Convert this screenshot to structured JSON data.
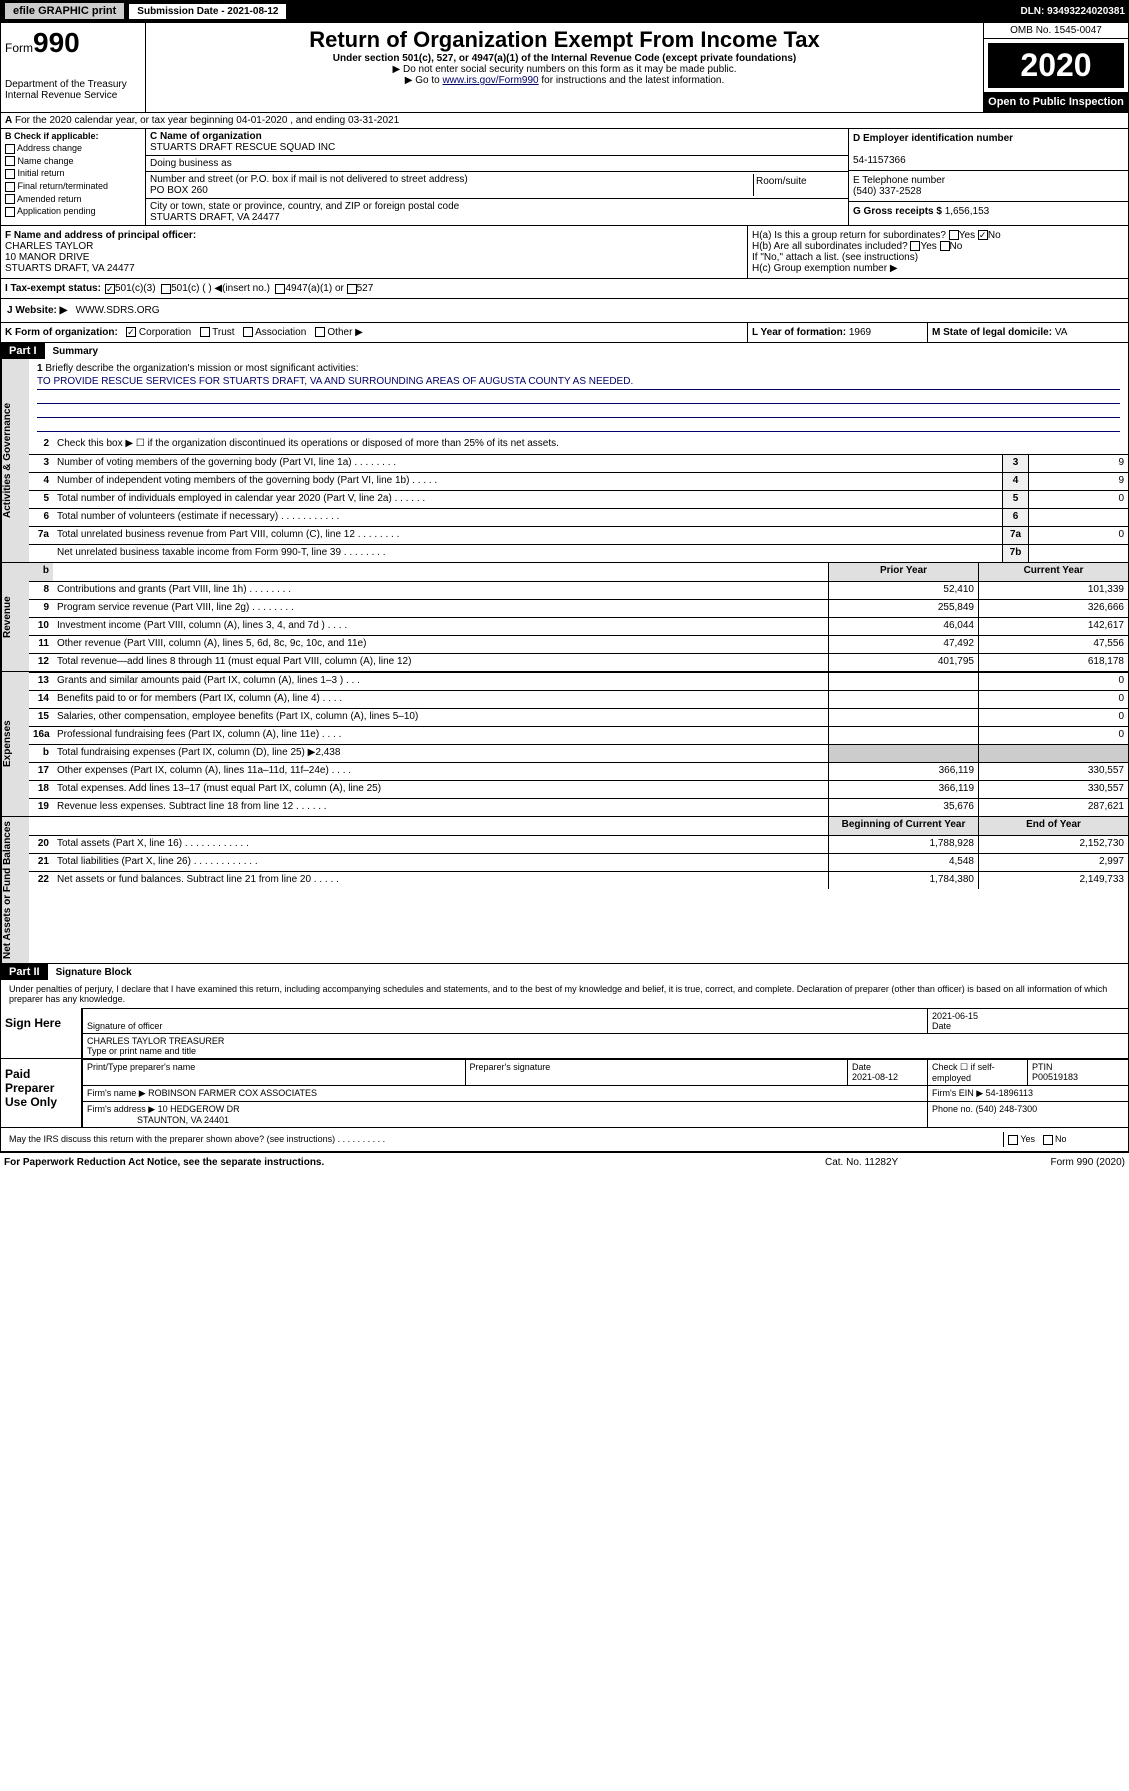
{
  "top": {
    "efile": "efile GRAPHIC print",
    "sub_label": "Submission Date - 2021-08-12",
    "dln": "DLN: 93493224020381"
  },
  "header": {
    "form_label": "Form",
    "form_num": "990",
    "dept": "Department of the Treasury\nInternal Revenue Service",
    "title": "Return of Organization Exempt From Income Tax",
    "subtitle": "Under section 501(c), 527, or 4947(a)(1) of the Internal Revenue Code (except private foundations)",
    "note1": "▶ Do not enter social security numbers on this form as it may be made public.",
    "note2_pre": "▶ Go to ",
    "note2_link": "www.irs.gov/Form990",
    "note2_post": " for instructions and the latest information.",
    "omb": "OMB No. 1545-0047",
    "year": "2020",
    "open": "Open to Public Inspection"
  },
  "row_a": "For the 2020 calendar year, or tax year beginning 04-01-2020    , and ending 03-31-2021",
  "col_b": {
    "hdr": "B Check if applicable:",
    "items": [
      "Address change",
      "Name change",
      "Initial return",
      "Final return/terminated",
      "Amended return",
      "Application pending"
    ]
  },
  "col_c": {
    "name_lbl": "C Name of organization",
    "name": "STUARTS DRAFT RESCUE SQUAD INC",
    "dba_lbl": "Doing business as",
    "addr_lbl": "Number and street (or P.O. box if mail is not delivered to street address)",
    "room_lbl": "Room/suite",
    "addr": "PO BOX 260",
    "city_lbl": "City or town, state or province, country, and ZIP or foreign postal code",
    "city": "STUARTS DRAFT, VA  24477"
  },
  "col_d": {
    "ein_lbl": "D Employer identification number",
    "ein": "54-1157366",
    "tel_lbl": "E Telephone number",
    "tel": "(540) 337-2528",
    "gross_lbl": "G Gross receipts $",
    "gross": "1,656,153"
  },
  "row_f": {
    "lbl": "F  Name and address of principal officer:",
    "name": "CHARLES TAYLOR",
    "addr1": "10 MANOR DRIVE",
    "addr2": "STUARTS DRAFT, VA  24477"
  },
  "row_h": {
    "ha": "H(a)  Is this a group return for subordinates?",
    "hb": "H(b)  Are all subordinates included?",
    "hb_note": "If \"No,\" attach a list. (see instructions)",
    "hc": "H(c)  Group exemption number ▶"
  },
  "row_i": {
    "lbl": "I  Tax-exempt status:",
    "opts": [
      "501(c)(3)",
      "501(c) (   ) ◀(insert no.)",
      "4947(a)(1) or",
      "527"
    ]
  },
  "row_j": {
    "lbl": "J  Website: ▶",
    "val": "WWW.SDRS.ORG"
  },
  "row_k": {
    "k": "K Form of organization:",
    "kopts": [
      "Corporation",
      "Trust",
      "Association",
      "Other ▶"
    ],
    "l_lbl": "L Year of formation:",
    "l_val": "1969",
    "m_lbl": "M State of legal domicile:",
    "m_val": "VA"
  },
  "part1": {
    "hdr": "Part I",
    "title": "Summary",
    "line1": "Briefly describe the organization's mission or most significant activities:",
    "mission": "TO PROVIDE RESCUE SERVICES FOR STUARTS DRAFT, VA AND SURROUNDING AREAS OF AUGUSTA COUNTY AS NEEDED.",
    "line2": "Check this box ▶ ☐  if the organization discontinued its operations or disposed of more than 25% of its net assets.",
    "lines_gov": [
      {
        "n": "3",
        "d": "Number of voting members of the governing body (Part VI, line 1a)   .    .    .    .    .    .    .    .",
        "box": "3",
        "v": "9"
      },
      {
        "n": "4",
        "d": "Number of independent voting members of the governing body (Part VI, line 1b)   .    .    .    .    .",
        "box": "4",
        "v": "9"
      },
      {
        "n": "5",
        "d": "Total number of individuals employed in calendar year 2020 (Part V, line 2a)   .    .    .    .    .    .",
        "box": "5",
        "v": "0"
      },
      {
        "n": "6",
        "d": "Total number of volunteers (estimate if necessary)   .    .    .    .    .    .    .    .    .    .    .",
        "box": "6",
        "v": ""
      },
      {
        "n": "7a",
        "d": "Total unrelated business revenue from Part VIII, column (C), line 12   .    .    .    .    .    .    .    .",
        "box": "7a",
        "v": "0"
      },
      {
        "n": "",
        "d": "Net unrelated business taxable income from Form 990-T, line 39   .    .    .    .    .    .    .    .",
        "box": "7b",
        "v": ""
      }
    ],
    "py_hdr": "Prior Year",
    "cy_hdr": "Current Year",
    "lines_rev": [
      {
        "n": "8",
        "d": "Contributions and grants (Part VIII, line 1h)   .    .    .    .    .    .    .    .",
        "py": "52,410",
        "cy": "101,339"
      },
      {
        "n": "9",
        "d": "Program service revenue (Part VIII, line 2g)   .    .    .    .    .    .    .    .",
        "py": "255,849",
        "cy": "326,666"
      },
      {
        "n": "10",
        "d": "Investment income (Part VIII, column (A), lines 3, 4, and 7d )   .    .    .    .",
        "py": "46,044",
        "cy": "142,617"
      },
      {
        "n": "11",
        "d": "Other revenue (Part VIII, column (A), lines 5, 6d, 8c, 9c, 10c, and 11e)",
        "py": "47,492",
        "cy": "47,556"
      },
      {
        "n": "12",
        "d": "Total revenue—add lines 8 through 11 (must equal Part VIII, column (A), line 12)",
        "py": "401,795",
        "cy": "618,178"
      }
    ],
    "lines_exp": [
      {
        "n": "13",
        "d": "Grants and similar amounts paid (Part IX, column (A), lines 1–3 )   .    .    .",
        "py": "",
        "cy": "0"
      },
      {
        "n": "14",
        "d": "Benefits paid to or for members (Part IX, column (A), line 4)   .    .    .    .",
        "py": "",
        "cy": "0"
      },
      {
        "n": "15",
        "d": "Salaries, other compensation, employee benefits (Part IX, column (A), lines 5–10)",
        "py": "",
        "cy": "0"
      },
      {
        "n": "16a",
        "d": "Professional fundraising fees (Part IX, column (A), line 11e)   .    .    .    .",
        "py": "",
        "cy": "0"
      },
      {
        "n": "b",
        "d": "Total fundraising expenses (Part IX, column (D), line 25) ▶2,438",
        "py": "__gray__",
        "cy": "__gray__"
      },
      {
        "n": "17",
        "d": "Other expenses (Part IX, column (A), lines 11a–11d, 11f–24e)   .    .    .    .",
        "py": "366,119",
        "cy": "330,557"
      },
      {
        "n": "18",
        "d": "Total expenses. Add lines 13–17 (must equal Part IX, column (A), line 25)",
        "py": "366,119",
        "cy": "330,557"
      },
      {
        "n": "19",
        "d": "Revenue less expenses. Subtract line 18 from line 12   .    .    .    .    .    .",
        "py": "35,676",
        "cy": "287,621"
      }
    ],
    "bcy_hdr": "Beginning of Current Year",
    "eoy_hdr": "End of Year",
    "lines_net": [
      {
        "n": "20",
        "d": "Total assets (Part X, line 16)   .    .    .    .    .    .    .    .    .    .    .    .",
        "py": "1,788,928",
        "cy": "2,152,730"
      },
      {
        "n": "21",
        "d": "Total liabilities (Part X, line 26)   .    .    .    .    .    .    .    .    .    .    .    .",
        "py": "4,548",
        "cy": "2,997"
      },
      {
        "n": "22",
        "d": "Net assets or fund balances. Subtract line 21 from line 20   .    .    .    .    .",
        "py": "1,784,380",
        "cy": "2,149,733"
      }
    ]
  },
  "part2": {
    "hdr": "Part II",
    "title": "Signature Block",
    "perjury": "Under penalties of perjury, I declare that I have examined this return, including accompanying schedules and statements, and to the best of my knowledge and belief, it is true, correct, and complete. Declaration of preparer (other than officer) is based on all information of which preparer has any knowledge.",
    "sign_here": "Sign Here",
    "sig_date": "2021-06-15",
    "sig_lbl": "Signature of officer",
    "date_lbl": "Date",
    "officer": "CHARLES TAYLOR  TREASURER",
    "officer_lbl": "Type or print name and title",
    "paid": "Paid Preparer Use Only",
    "prep_name_lbl": "Print/Type preparer's name",
    "prep_sig_lbl": "Preparer's signature",
    "prep_date_lbl": "Date",
    "prep_date": "2021-08-12",
    "self_emp": "Check ☐ if self-employed",
    "ptin_lbl": "PTIN",
    "ptin": "P00519183",
    "firm_lbl": "Firm's name    ▶",
    "firm": "ROBINSON FARMER COX ASSOCIATES",
    "firm_ein_lbl": "Firm's EIN ▶",
    "firm_ein": "54-1896113",
    "firm_addr_lbl": "Firm's address ▶",
    "firm_addr": "10 HEDGEROW DR",
    "firm_city": "STAUNTON, VA  24401",
    "phone_lbl": "Phone no.",
    "phone": "(540) 248-7300",
    "discuss": "May the IRS discuss this return with the preparer shown above? (see instructions)    .    .    .    .    .    .    .    .    .    .",
    "paperwork": "For Paperwork Reduction Act Notice, see the separate instructions.",
    "cat": "Cat. No. 11282Y",
    "form_footer": "Form 990 (2020)"
  },
  "side_labels": {
    "gov": "Activities & Governance",
    "rev": "Revenue",
    "exp": "Expenses",
    "net": "Net Assets or Fund Balances"
  }
}
